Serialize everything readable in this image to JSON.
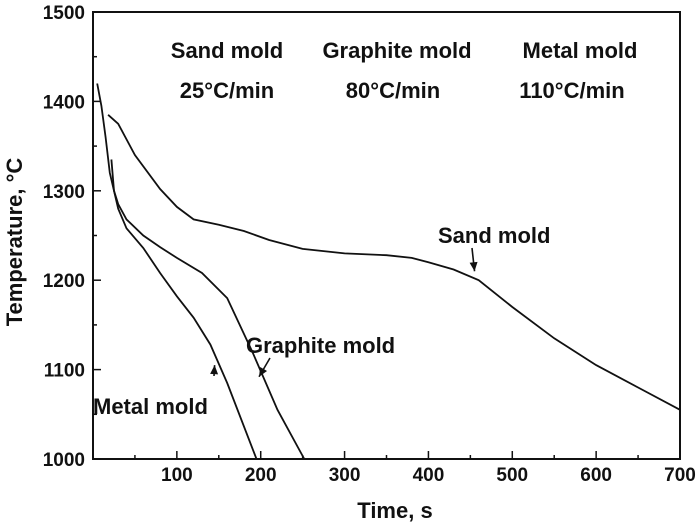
{
  "chart_data": {
    "type": "line",
    "xlabel": "Time, s",
    "ylabel": "Temperature, °C",
    "xlim": [
      0,
      700
    ],
    "ylim": [
      1000,
      1500
    ],
    "x_ticks": [
      100,
      200,
      300,
      400,
      500,
      600,
      700
    ],
    "y_ticks": [
      1000,
      1100,
      1200,
      1300,
      1400,
      1500
    ],
    "grid": false,
    "legend": "none",
    "header": [
      {
        "mold": "Sand mold",
        "rate": "25°C/min"
      },
      {
        "mold": "Graphite mold",
        "rate": "80°C/min"
      },
      {
        "mold": "Metal mold",
        "rate": "110°C/min"
      }
    ],
    "series": [
      {
        "name": "Sand mold",
        "x": [
          18,
          30,
          50,
          80,
          100,
          120,
          150,
          180,
          210,
          250,
          300,
          350,
          380,
          400,
          430,
          460,
          500,
          550,
          600,
          650,
          700
        ],
        "y": [
          1385,
          1375,
          1340,
          1302,
          1282,
          1268,
          1262,
          1255,
          1245,
          1235,
          1230,
          1228,
          1225,
          1220,
          1212,
          1200,
          1170,
          1135,
          1105,
          1080,
          1055
        ]
      },
      {
        "name": "Graphite mold",
        "x": [
          22,
          25,
          30,
          40,
          60,
          80,
          100,
          130,
          160,
          190,
          220,
          252
        ],
        "y": [
          1335,
          1300,
          1285,
          1268,
          1250,
          1237,
          1225,
          1208,
          1180,
          1120,
          1055,
          1000
        ]
      },
      {
        "name": "Metal mold",
        "x": [
          5,
          10,
          15,
          20,
          30,
          40,
          60,
          80,
          100,
          120,
          140,
          160,
          195
        ],
        "y": [
          1420,
          1395,
          1360,
          1320,
          1280,
          1258,
          1236,
          1208,
          1182,
          1158,
          1128,
          1085,
          1000
        ]
      }
    ],
    "annotations": [
      {
        "label": "Sand mold",
        "arrow_to": [
          455,
          1210
        ]
      },
      {
        "label": "Graphite mold",
        "arrow_to": [
          198,
          1092
        ]
      },
      {
        "label": "Metal mold",
        "arrow_to": [
          145,
          1105
        ]
      }
    ]
  }
}
